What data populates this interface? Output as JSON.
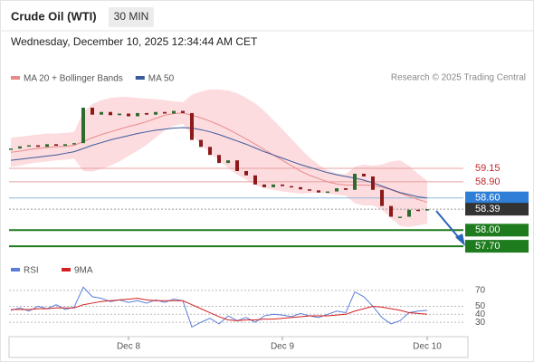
{
  "header": {
    "title": "Crude Oil (WTI)",
    "timeframe": "30 MIN",
    "timestamp": "Wednesday, December 10, 2025 12:34:44 AM CET"
  },
  "chart_data": [
    {
      "type": "candlestick",
      "credit": "Research © 2025 Trading Central",
      "categories": [
        null,
        null,
        null,
        null,
        null,
        null,
        null,
        null,
        null,
        null,
        null,
        null,
        null,
        "Dec 8",
        null,
        null,
        null,
        null,
        null,
        null,
        null,
        null,
        null,
        null,
        null,
        null,
        null,
        null,
        null,
        null,
        "Dec 9",
        null,
        null,
        null,
        null,
        null,
        null,
        null,
        null,
        null,
        null,
        null,
        null,
        null,
        null,
        null,
        "Dec 10"
      ],
      "open": [
        59.5,
        59.52,
        59.56,
        59.58,
        59.55,
        59.6,
        59.57,
        59.6,
        59.62,
        60.28,
        60.15,
        60.2,
        60.14,
        60.17,
        60.12,
        60.18,
        60.15,
        60.2,
        60.17,
        60.22,
        60.18,
        59.68,
        59.55,
        59.4,
        59.25,
        59.3,
        59.1,
        59.02,
        58.85,
        58.8,
        58.85,
        58.82,
        58.8,
        58.76,
        58.74,
        58.7,
        58.72,
        58.78,
        58.75,
        59.05,
        59.0,
        58.75,
        58.45,
        58.25,
        58.25,
        58.38,
        58.37
      ],
      "close": [
        59.52,
        59.56,
        59.58,
        59.55,
        59.6,
        59.57,
        59.6,
        59.62,
        60.28,
        60.15,
        60.2,
        60.14,
        60.17,
        60.12,
        60.18,
        60.15,
        60.2,
        60.17,
        60.22,
        60.18,
        59.68,
        59.55,
        59.4,
        59.25,
        59.3,
        59.1,
        59.02,
        58.85,
        58.8,
        58.85,
        58.82,
        58.8,
        58.76,
        58.74,
        58.7,
        58.72,
        58.78,
        58.75,
        59.05,
        59.0,
        58.75,
        58.45,
        58.25,
        58.25,
        58.38,
        58.37,
        58.39
      ],
      "up_color": "#2e6b2e",
      "down_color": "#8b1a1a",
      "series": [
        {
          "name": "MA 20 + Bollinger Bands",
          "color": "#e98a8a",
          "values": [
            59.45,
            59.47,
            59.5,
            59.52,
            59.54,
            59.55,
            59.56,
            59.58,
            59.65,
            59.72,
            59.78,
            59.83,
            59.88,
            59.93,
            59.97,
            60.02,
            60.08,
            60.14,
            60.17,
            60.18,
            60.14,
            60.09,
            60.03,
            59.96,
            59.88,
            59.79,
            59.7,
            59.6,
            59.5,
            59.4,
            59.3,
            59.2,
            59.1,
            59.02,
            58.96,
            58.9,
            58.86,
            58.84,
            58.84,
            58.84,
            58.83,
            58.8,
            58.75,
            58.69,
            58.63,
            58.57,
            58.52
          ]
        },
        {
          "name": "MA 50",
          "color": "#3a5a9a",
          "values": [
            59.3,
            59.32,
            59.34,
            59.36,
            59.38,
            59.4,
            59.43,
            59.46,
            59.52,
            59.58,
            59.63,
            59.68,
            59.72,
            59.76,
            59.8,
            59.83,
            59.86,
            59.88,
            59.9,
            59.91,
            59.9,
            59.87,
            59.83,
            59.78,
            59.72,
            59.66,
            59.6,
            59.53,
            59.46,
            59.4,
            59.34,
            59.28,
            59.22,
            59.17,
            59.12,
            59.07,
            59.03,
            59.0,
            58.97,
            58.93,
            58.88,
            58.82,
            58.76,
            58.7,
            58.66,
            58.62,
            58.6
          ]
        }
      ],
      "bands": {
        "color": "#fbd6d9",
        "upper": [
          59.72,
          59.74,
          59.76,
          59.78,
          59.8,
          59.8,
          59.81,
          59.83,
          60.2,
          60.35,
          60.42,
          60.46,
          60.48,
          60.48,
          60.46,
          60.45,
          60.44,
          60.42,
          60.4,
          60.38,
          60.52,
          60.58,
          60.62,
          60.62,
          60.6,
          60.55,
          60.46,
          60.36,
          60.22,
          60.05,
          59.88,
          59.7,
          59.52,
          59.35,
          59.22,
          59.12,
          59.06,
          59.04,
          59.18,
          59.22,
          59.2,
          59.22,
          59.28,
          59.3,
          59.2,
          59.05,
          58.92
        ],
        "lower": [
          59.18,
          59.2,
          59.24,
          59.26,
          59.28,
          59.3,
          59.31,
          59.33,
          59.1,
          59.09,
          59.14,
          59.2,
          59.28,
          59.38,
          59.48,
          59.59,
          59.72,
          59.86,
          59.94,
          59.98,
          59.76,
          59.6,
          59.44,
          59.3,
          59.16,
          59.03,
          58.94,
          58.84,
          58.78,
          58.75,
          58.72,
          58.7,
          58.68,
          58.69,
          58.7,
          58.68,
          58.66,
          58.64,
          58.5,
          58.46,
          58.46,
          58.38,
          58.22,
          58.08,
          58.06,
          58.09,
          58.12
        ]
      },
      "levels": [
        {
          "value": 59.15,
          "color": "#e8a0a0",
          "text_color": "#c0282d",
          "box": false
        },
        {
          "value": {
            "value": 58.9,
            "label": "58.90"
          },
          "color": "#e8a0a0",
          "text_color": "#c0282d",
          "box": false
        },
        {
          "value": {
            "value": 58.6,
            "label": "58.60"
          },
          "color": "#8fb8dc",
          "text_color": "#ffffff",
          "box": "#2f7ed8"
        },
        {
          "value": 58.39,
          "color": "#9a9a9a",
          "text_color": "#ffffff",
          "box": "#333333",
          "dotted": true
        },
        {
          "value": {
            "value": 58.0,
            "label": "58.00"
          },
          "color": "#1e7b1e",
          "text_color": "#ffffff",
          "box": "#1e7b1e"
        },
        {
          "value": {
            "value": 57.7,
            "label": "57.70"
          },
          "color": "#1e7b1e",
          "text_color": "#ffffff",
          "box": "#1e7b1e"
        }
      ],
      "ylim": [
        57.55,
        60.6
      ]
    },
    {
      "type": "line",
      "series": [
        {
          "name": "RSI",
          "color": "#5a7fd8",
          "values": [
            45,
            48,
            44,
            50,
            47,
            52,
            46,
            49,
            74,
            62,
            60,
            56,
            58,
            55,
            57,
            54,
            58,
            55,
            59,
            57,
            24,
            30,
            35,
            28,
            38,
            32,
            36,
            30,
            38,
            40,
            39,
            37,
            41,
            38,
            36,
            40,
            44,
            42,
            68,
            62,
            50,
            36,
            28,
            32,
            42,
            44,
            45
          ]
        },
        {
          "name": "9MA",
          "color": "#d42020",
          "values": [
            46,
            46,
            46,
            47,
            47,
            48,
            48,
            48,
            52,
            54,
            56,
            57,
            58,
            59,
            60,
            58,
            57,
            57,
            57,
            57,
            52,
            47,
            42,
            37,
            33,
            32,
            33,
            33,
            34,
            34,
            35,
            36,
            37,
            38,
            38,
            38,
            39,
            40,
            44,
            47,
            50,
            49,
            47,
            45,
            42,
            41,
            40
          ]
        }
      ],
      "ylim": [
        12,
        80
      ],
      "yticks": [
        70,
        50,
        40,
        30
      ]
    }
  ]
}
